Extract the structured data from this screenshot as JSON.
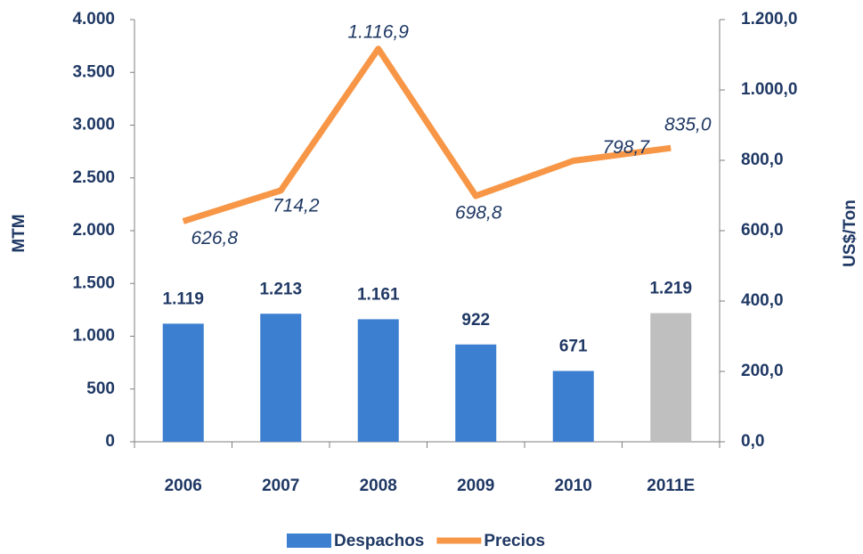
{
  "chart_data": {
    "type": "bar+line",
    "categories": [
      "2006",
      "2007",
      "2008",
      "2009",
      "2010",
      "2011E"
    ],
    "series": [
      {
        "name": "Despachos",
        "type": "bar",
        "color": "#3c7fd0",
        "colors": [
          "#3c7fd0",
          "#3c7fd0",
          "#3c7fd0",
          "#3c7fd0",
          "#3c7fd0",
          "#bfbfbf"
        ],
        "values": [
          1119,
          1213,
          1161,
          922,
          671,
          1219
        ],
        "value_labels": [
          "1.119",
          "1.213",
          "1.161",
          "922",
          "671",
          "1.219"
        ]
      },
      {
        "name": "Precios",
        "type": "line",
        "axis": "y2",
        "color": "#f79646",
        "values": [
          626.8,
          714.2,
          1116.9,
          698.8,
          798.7,
          835.0
        ],
        "value_labels": [
          "626,8",
          "714,2",
          "1.116,9",
          "698,8",
          "798,7",
          "835,0"
        ]
      }
    ],
    "ylabel": "MTM",
    "y2label": "US$/Ton",
    "ylim": [
      0,
      4000
    ],
    "yticks": [
      0,
      500,
      {
        "value": 1000,
        "label": "1.000"
      },
      {
        "value": 1500,
        "label": "1.500"
      },
      {
        "value": 2000,
        "label": "2.000"
      },
      {
        "value": 2500,
        "label": "2.500"
      },
      {
        "value": 3000,
        "label": "3.000"
      },
      {
        "value": 3500,
        "label": "3.500"
      },
      {
        "value": 4000,
        "label": "4.000"
      }
    ],
    "y2lim": [
      0,
      1200
    ],
    "y2ticks": [
      {
        "value": 0,
        "label": "0,0"
      },
      {
        "value": 200,
        "label": "200,0"
      },
      {
        "value": 400,
        "label": "400,0"
      },
      {
        "value": 600,
        "label": "600,0"
      },
      {
        "value": 800,
        "label": "800,0"
      },
      {
        "value": 1000,
        "label": "1.000,0"
      },
      {
        "value": 1200,
        "label": "1.200,0"
      }
    ],
    "legend": "bottom"
  }
}
